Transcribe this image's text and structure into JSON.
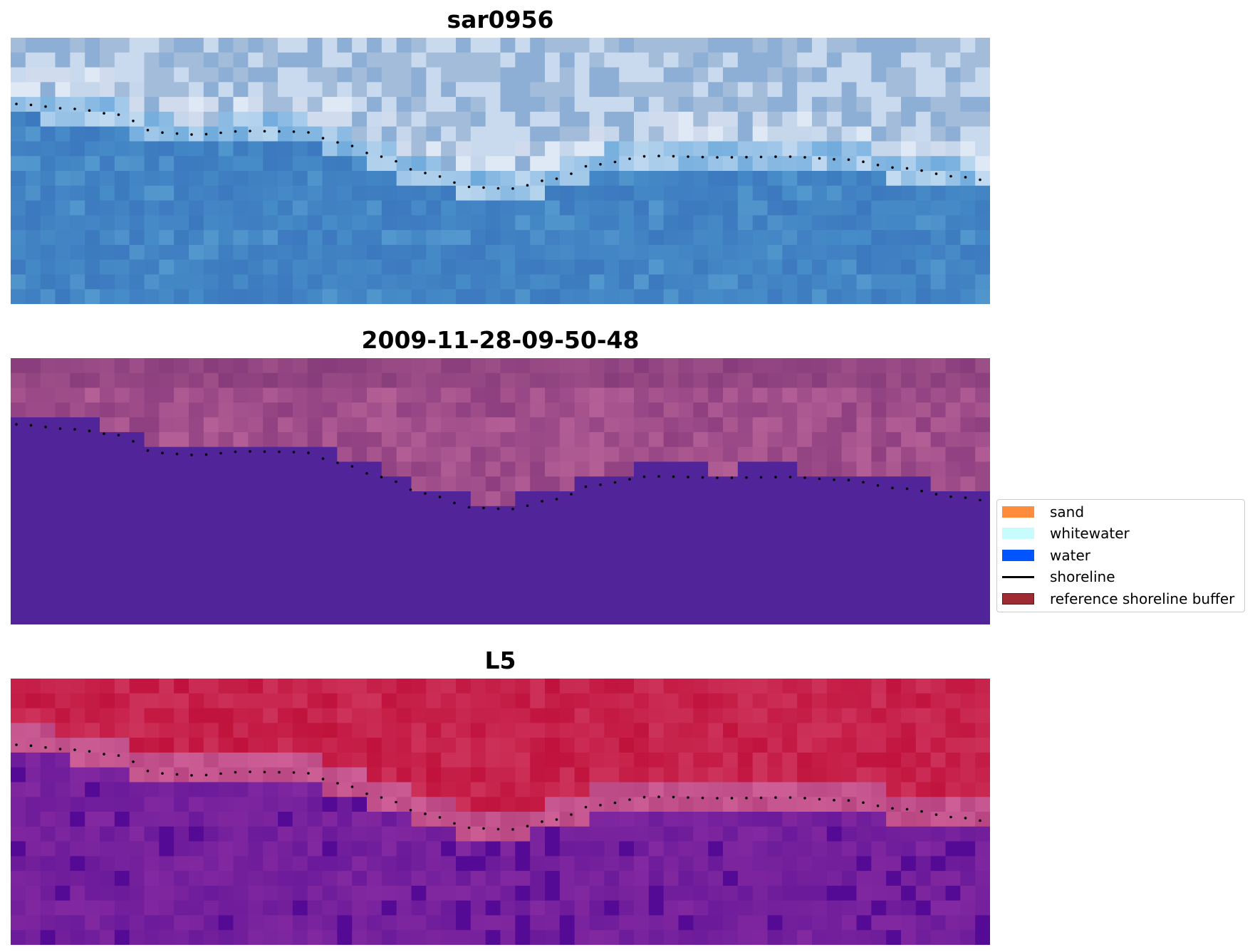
{
  "panels": [
    {
      "title": "sar0956",
      "palette": "rgb"
    },
    {
      "title": "2009-11-28-09-50-48",
      "palette": "classified"
    },
    {
      "title": "L5",
      "palette": "index"
    }
  ],
  "legend": {
    "items": [
      {
        "label": "sand",
        "kind": "patch",
        "color": "#ff8c3c"
      },
      {
        "label": "whitewater",
        "kind": "patch",
        "color": "#c8fcfc"
      },
      {
        "label": "water",
        "kind": "patch",
        "color": "#0055ff"
      },
      {
        "label": "shoreline",
        "kind": "line",
        "color": "#000000"
      },
      {
        "label": "reference shoreline buffer",
        "kind": "patch",
        "color": "#9e2a32"
      }
    ]
  },
  "colors": {
    "shoreline": "#000000",
    "classified_water": "#52249a",
    "classified_land": "#8e3f80",
    "index_land": "#c0123c",
    "index_water": "#6a1a9a"
  }
}
